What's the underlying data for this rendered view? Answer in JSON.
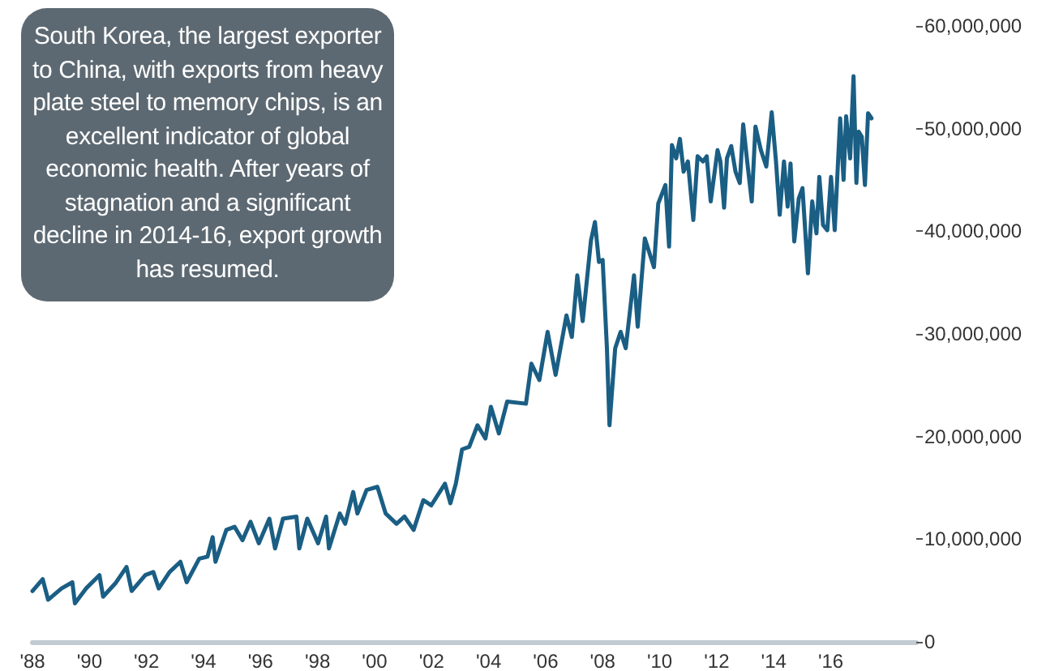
{
  "chart_data": {
    "type": "line",
    "annotations": [
      "South Korea, the largest exporter to China, with exports from heavy plate steel to memory chips, is an excellent indicator of global economic health. After years of stagnation and a significant decline in 2014-16, export growth has resumed."
    ],
    "x": [
      1988.0,
      1988.36,
      1988.55,
      1989.02,
      1989.4,
      1989.49,
      1989.88,
      1990.35,
      1990.48,
      1990.91,
      1991.3,
      1991.48,
      1991.96,
      1992.24,
      1992.43,
      1992.81,
      1993.19,
      1993.41,
      1993.85,
      1994.14,
      1994.32,
      1994.42,
      1994.8,
      1995.09,
      1995.37,
      1995.65,
      1995.94,
      1996.31,
      1996.51,
      1996.79,
      1997.26,
      1997.36,
      1997.64,
      1998.02,
      1998.3,
      1998.4,
      1998.78,
      1998.97,
      1999.25,
      1999.4,
      1999.72,
      2000.1,
      2000.39,
      2000.77,
      2001.05,
      2001.37,
      2001.71,
      2001.99,
      2002.47,
      2002.66,
      2002.85,
      2003.07,
      2003.32,
      2003.61,
      2003.89,
      2004.08,
      2004.36,
      2004.65,
      2005.31,
      2005.5,
      2005.78,
      2006.07,
      2006.35,
      2006.73,
      2006.92,
      2007.11,
      2007.3,
      2007.59,
      2007.73,
      2007.87,
      2008.0,
      2008.15,
      2008.24,
      2008.44,
      2008.63,
      2008.81,
      2009.1,
      2009.23,
      2009.48,
      2009.8,
      2009.95,
      2010.2,
      2010.33,
      2010.43,
      2010.58,
      2010.71,
      2010.84,
      2010.99,
      2011.18,
      2011.33,
      2011.52,
      2011.65,
      2011.79,
      2012.03,
      2012.13,
      2012.26,
      2012.36,
      2012.51,
      2012.66,
      2012.81,
      2012.93,
      2013.07,
      2013.23,
      2013.36,
      2013.55,
      2013.74,
      2013.93,
      2014.08,
      2014.21,
      2014.36,
      2014.49,
      2014.59,
      2014.72,
      2014.88,
      2015.01,
      2015.2,
      2015.35,
      2015.5,
      2015.6,
      2015.73,
      2015.88,
      2016.01,
      2016.14,
      2016.33,
      2016.45,
      2016.54,
      2016.68,
      2016.8,
      2016.9,
      2016.98,
      2017.09,
      2017.2,
      2017.31,
      2017.43
    ],
    "series": [
      {
        "color": "#1a5e84",
        "values": [
          4950000,
          6100000,
          4100000,
          5200000,
          5800000,
          3750000,
          5200000,
          6500000,
          4400000,
          5700000,
          7300000,
          4950000,
          6500000,
          6800000,
          5200000,
          6800000,
          7800000,
          5800000,
          8100000,
          8300000,
          10200000,
          7800000,
          10900000,
          11200000,
          9900000,
          11700000,
          9600000,
          12000000,
          9100000,
          12000000,
          12200000,
          9100000,
          12000000,
          9600000,
          12200000,
          9100000,
          12500000,
          11500000,
          14600000,
          12500000,
          14800000,
          15100000,
          12500000,
          11500000,
          12200000,
          10900000,
          13800000,
          13300000,
          15400000,
          13500000,
          15400000,
          18750000,
          19000000,
          21100000,
          19800000,
          22900000,
          20300000,
          23400000,
          23200000,
          27100000,
          25500000,
          30200000,
          26000000,
          31800000,
          29700000,
          35700000,
          31250000,
          39100000,
          40900000,
          37000000,
          37200000,
          28600000,
          21100000,
          28600000,
          30200000,
          28600000,
          35700000,
          30700000,
          39300000,
          36500000,
          42700000,
          44500000,
          38500000,
          48400000,
          47100000,
          49000000,
          45800000,
          46800000,
          41100000,
          47300000,
          46800000,
          47300000,
          42900000,
          47900000,
          46800000,
          42300000,
          47100000,
          48300000,
          45800000,
          44700000,
          50400000,
          46800000,
          42900000,
          50200000,
          47900000,
          46300000,
          51600000,
          46800000,
          41600000,
          46800000,
          42400000,
          46600000,
          39000000,
          43200000,
          44200000,
          35900000,
          42900000,
          39800000,
          45300000,
          40600000,
          40100000,
          45300000,
          40100000,
          51000000,
          45000000,
          51200000,
          47100000,
          55100000,
          44700000,
          49700000,
          49200000,
          44500000,
          51500000,
          51000000
        ]
      }
    ],
    "xlim": [
      1988,
      2019
    ],
    "xticks": [
      {
        "value": 1988,
        "label": "'88"
      },
      {
        "value": 1990,
        "label": "'90"
      },
      {
        "value": 1992,
        "label": "'92"
      },
      {
        "value": 1994,
        "label": "'94"
      },
      {
        "value": 1996,
        "label": "'96"
      },
      {
        "value": 1998,
        "label": "'98"
      },
      {
        "value": 2000,
        "label": "'00"
      },
      {
        "value": 2002,
        "label": "'02"
      },
      {
        "value": 2004,
        "label": "'04"
      },
      {
        "value": 2006,
        "label": "'06"
      },
      {
        "value": 2008,
        "label": "'08"
      },
      {
        "value": 2010,
        "label": "'10"
      },
      {
        "value": 2012,
        "label": "'12"
      },
      {
        "value": 2014,
        "label": "'14"
      },
      {
        "value": 2016,
        "label": "'16"
      }
    ],
    "ylim": [
      0,
      60000000
    ],
    "yticks": [
      {
        "value": 0,
        "label": "0"
      },
      {
        "value": 10000000,
        "label": "10,000,000"
      },
      {
        "value": 20000000,
        "label": "20,000,000"
      },
      {
        "value": 30000000,
        "label": "30,000,000"
      },
      {
        "value": 40000000,
        "label": "40,000,000"
      },
      {
        "value": 50000000,
        "label": "50,000,000"
      },
      {
        "value": 60000000,
        "label": "60,000,000"
      }
    ],
    "grid": false,
    "marker": "none",
    "line_style": "solid"
  }
}
